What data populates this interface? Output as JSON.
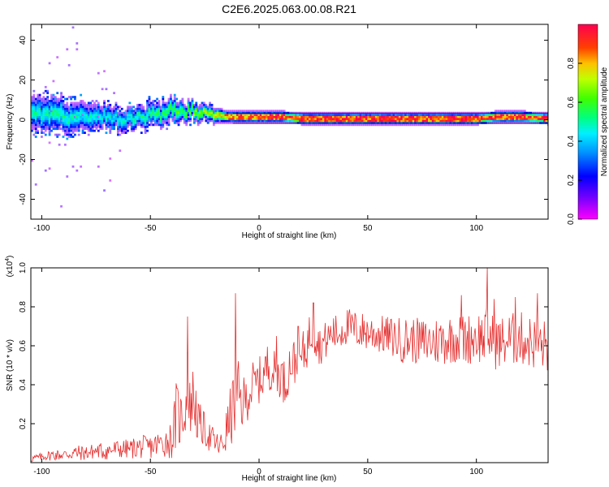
{
  "title": "C2E6.2025.063.00.08.R21",
  "chart_data": [
    {
      "type": "heatmap",
      "xlabel": "Height of straight line (km)",
      "ylabel": "Frequency (Hz)",
      "xlim": [
        -105,
        133
      ],
      "ylim": [
        -50,
        48
      ],
      "x_ticks": [
        -100,
        -50,
        0,
        50,
        100
      ],
      "y_ticks": [
        -40,
        -20,
        0,
        20,
        40
      ],
      "colorbar": {
        "label": "Normalized spectral amplitude",
        "range": [
          0,
          1
        ],
        "ticks": [
          0.0,
          0.2,
          0.4,
          0.6,
          0.8
        ],
        "colormap": [
          "#ff00ff",
          "#8000ff",
          "#0000ff",
          "#00c0ff",
          "#00ff80",
          "#40ff00",
          "#ffff00",
          "#ff8000",
          "#ff0000",
          "#ff0040"
        ]
      },
      "ridge": {
        "x": [
          -105,
          -95,
          -85,
          -75,
          -65,
          -55,
          -45,
          -40,
          -35,
          -30,
          -25,
          -20,
          -15,
          -10,
          -5,
          0,
          10,
          20,
          40,
          60,
          80,
          100,
          110,
          120,
          133
        ],
        "center_hz": [
          2,
          2,
          1,
          1,
          0,
          1,
          2,
          4,
          3,
          4,
          3,
          2,
          1,
          1,
          1,
          1,
          1,
          0,
          0,
          0,
          0,
          0,
          1,
          1,
          0
        ],
        "peak_amplitude": [
          0.5,
          0.5,
          0.5,
          0.45,
          0.45,
          0.5,
          0.55,
          0.6,
          0.6,
          0.65,
          0.7,
          0.75,
          0.8,
          0.85,
          0.85,
          0.85,
          0.9,
          0.9,
          0.9,
          0.9,
          0.9,
          0.9,
          0.9,
          0.9,
          0.9
        ],
        "spread_hz": [
          9,
          9,
          8,
          7,
          6,
          6,
          6,
          6,
          5,
          5,
          4,
          4,
          3,
          3,
          3,
          3,
          3,
          3,
          3,
          3,
          3,
          3,
          3,
          3,
          3
        ]
      }
    },
    {
      "type": "line",
      "xlabel": "Height of straight line (km)",
      "ylabel": "SNR (10 * v/v)",
      "y_multiplier": "(x10",
      "y_multiplier_exp": "4",
      "y_multiplier_close": ")",
      "xlim": [
        -105,
        133
      ],
      "ylim": [
        0,
        1.0
      ],
      "x_ticks": [
        -100,
        -50,
        0,
        50,
        100
      ],
      "y_ticks": [
        0.2,
        0.4,
        0.6,
        0.8,
        1.0
      ],
      "series": [
        {
          "color": "#e53030",
          "x": [
            -105,
            -100,
            -95,
            -90,
            -85,
            -80,
            -75,
            -70,
            -65,
            -60,
            -55,
            -50,
            -45,
            -40,
            -38,
            -36,
            -34,
            -32,
            -30,
            -28,
            -26,
            -24,
            -22,
            -20,
            -18,
            -16,
            -14,
            -12,
            -10,
            -8,
            -6,
            -4,
            -2,
            0,
            2,
            4,
            6,
            8,
            10,
            12,
            14,
            16,
            18,
            20,
            22,
            24,
            26,
            28,
            30,
            32,
            34,
            36,
            38,
            40,
            45,
            50,
            55,
            60,
            65,
            70,
            75,
            80,
            85,
            90,
            95,
            100,
            103,
            105,
            108,
            110,
            115,
            120,
            125,
            130,
            133
          ],
          "values": [
            0.02,
            0.03,
            0.04,
            0.04,
            0.05,
            0.05,
            0.06,
            0.06,
            0.07,
            0.07,
            0.08,
            0.08,
            0.1,
            0.12,
            0.25,
            0.22,
            0.3,
            0.28,
            0.35,
            0.2,
            0.18,
            0.15,
            0.12,
            0.1,
            0.08,
            0.12,
            0.2,
            0.28,
            0.35,
            0.3,
            0.33,
            0.38,
            0.4,
            0.42,
            0.45,
            0.5,
            0.48,
            0.44,
            0.46,
            0.4,
            0.5,
            0.52,
            0.5,
            0.55,
            0.6,
            0.68,
            0.66,
            0.6,
            0.62,
            0.64,
            0.67,
            0.66,
            0.68,
            0.7,
            0.68,
            0.67,
            0.66,
            0.65,
            0.63,
            0.63,
            0.62,
            0.62,
            0.63,
            0.64,
            0.63,
            0.65,
            0.64,
            0.66,
            0.62,
            0.61,
            0.63,
            0.64,
            0.62,
            0.6,
            0.6
          ],
          "noise": [
            0.02,
            0.02,
            0.03,
            0.03,
            0.04,
            0.04,
            0.04,
            0.05,
            0.05,
            0.05,
            0.06,
            0.06,
            0.07,
            0.1,
            0.18,
            0.15,
            0.18,
            0.15,
            0.18,
            0.12,
            0.1,
            0.08,
            0.08,
            0.07,
            0.06,
            0.1,
            0.14,
            0.18,
            0.2,
            0.15,
            0.12,
            0.15,
            0.12,
            0.12,
            0.13,
            0.12,
            0.12,
            0.12,
            0.12,
            0.12,
            0.12,
            0.12,
            0.12,
            0.12,
            0.12,
            0.13,
            0.12,
            0.1,
            0.1,
            0.1,
            0.1,
            0.1,
            0.1,
            0.1,
            0.1,
            0.1,
            0.1,
            0.1,
            0.12,
            0.12,
            0.12,
            0.13,
            0.13,
            0.13,
            0.13,
            0.14,
            0.14,
            0.14,
            0.14,
            0.14,
            0.14,
            0.14,
            0.14,
            0.14,
            0.14
          ],
          "spikes": [
            [
              -33,
              0.75
            ],
            [
              -11,
              0.87
            ],
            [
              8,
              0.65
            ],
            [
              18,
              0.7
            ],
            [
              25,
              0.82
            ],
            [
              42,
              0.74
            ],
            [
              93,
              0.86
            ],
            [
              105,
              1.0
            ],
            [
              108,
              0.84
            ],
            [
              118,
              0.85
            ],
            [
              128,
              0.87
            ]
          ]
        }
      ]
    }
  ]
}
